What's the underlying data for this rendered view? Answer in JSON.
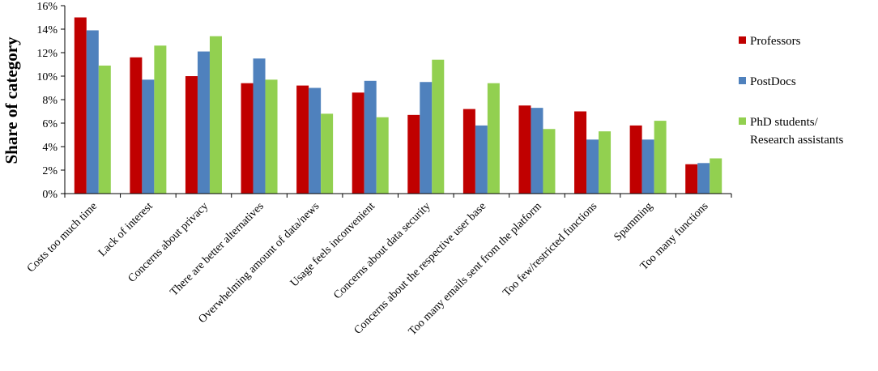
{
  "chart_data": {
    "type": "bar",
    "title": "",
    "xlabel": "",
    "ylabel": "Share of category",
    "ylim": [
      0,
      16
    ],
    "y_ticks": [
      "0%",
      "2%",
      "4%",
      "6%",
      "8%",
      "10%",
      "12%",
      "14%",
      "16%"
    ],
    "y_tick_values": [
      0,
      2,
      4,
      6,
      8,
      10,
      12,
      14,
      16
    ],
    "grid": false,
    "legend_position": "right",
    "categories": [
      "Costs too much time",
      "Lack of interest",
      "Concerns about privacy",
      "There are better alternatives",
      "Overwhelming amount of data/news",
      "Usage feels inconvenient",
      "Concerns about data security",
      "Concerns about the respective user base",
      "Too many emails sent from the platform",
      "Too few/restricted functions",
      "Spamming",
      "Too many functions"
    ],
    "series": [
      {
        "name": "Professors",
        "color": "#c00000",
        "values": [
          15.0,
          11.6,
          10.0,
          9.4,
          9.2,
          8.6,
          6.7,
          7.2,
          7.5,
          7.0,
          5.8,
          2.5
        ]
      },
      {
        "name": "PostDocs",
        "color": "#4f81bd",
        "values": [
          13.9,
          9.7,
          12.1,
          11.5,
          9.0,
          9.6,
          9.5,
          5.8,
          7.3,
          4.6,
          4.6,
          2.6
        ]
      },
      {
        "name": "PhD students/ Research assistants",
        "legend_lines": [
          "PhD students/",
          "Research assistants"
        ],
        "color": "#92d050",
        "values": [
          10.9,
          12.6,
          13.4,
          9.7,
          6.8,
          6.5,
          11.4,
          9.4,
          5.5,
          5.3,
          6.2,
          3.0
        ]
      }
    ]
  }
}
